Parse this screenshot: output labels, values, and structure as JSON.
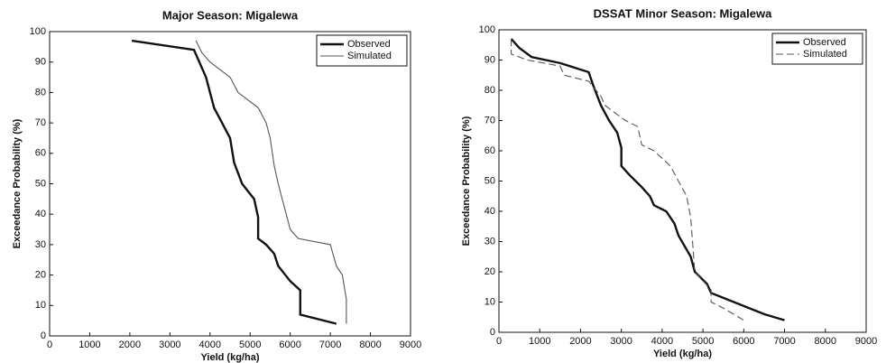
{
  "chart_data": [
    {
      "type": "line",
      "title": "Major Season: Migalewa",
      "x_label": "Yield (kg/ha)",
      "y_label": "Exceedance Probability (%)",
      "xlim": [
        0,
        9000
      ],
      "ylim": [
        0,
        100
      ],
      "xticks": [
        0,
        1000,
        2000,
        3000,
        4000,
        5000,
        6000,
        7000,
        8000,
        9000
      ],
      "yticks": [
        0,
        10,
        20,
        30,
        40,
        50,
        60,
        70,
        80,
        90,
        100
      ],
      "legend": "upper right",
      "series": [
        {
          "name": "Observed",
          "color": "#111111",
          "width": 2.4,
          "style": "solid",
          "x": [
            2050,
            3600,
            3700,
            3900,
            4000,
            4100,
            4300,
            4500,
            4600,
            4800,
            5100,
            5200,
            5200,
            5400,
            5600,
            5700,
            6000,
            6250,
            6250,
            7150
          ],
          "values": [
            97,
            94,
            91,
            85,
            80,
            75,
            70,
            65,
            57,
            50,
            45,
            39,
            32,
            30,
            27,
            23,
            18,
            15,
            7,
            4
          ]
        },
        {
          "name": "Simulated",
          "color": "#555555",
          "width": 1.1,
          "style": "solid",
          "x": [
            3650,
            3800,
            4000,
            4300,
            4500,
            4700,
            5000,
            5200,
            5400,
            5500,
            5600,
            5700,
            5800,
            5900,
            6000,
            6200,
            7000,
            7150,
            7300,
            7400,
            7400
          ],
          "values": [
            97,
            93,
            90,
            87,
            85,
            80,
            77,
            75,
            70,
            65,
            56,
            50,
            45,
            40,
            35,
            32,
            30,
            23,
            20,
            12,
            4
          ]
        }
      ]
    },
    {
      "type": "line",
      "title": "DSSAT Minor Season: Migalewa",
      "x_label": "Yield (kg/ha)",
      "y_label": "Exceedance Probability (%)",
      "xlim": [
        0,
        9000
      ],
      "ylim": [
        0,
        100
      ],
      "xticks": [
        0,
        1000,
        2000,
        3000,
        4000,
        5000,
        6000,
        7000,
        8000,
        9000
      ],
      "yticks": [
        0,
        10,
        20,
        30,
        40,
        50,
        60,
        70,
        80,
        90,
        100
      ],
      "legend": "upper right",
      "series": [
        {
          "name": "Observed",
          "color": "#111111",
          "width": 2.4,
          "style": "solid",
          "x": [
            300,
            500,
            800,
            1500,
            2200,
            2300,
            2500,
            2700,
            2900,
            3000,
            3000,
            3200,
            3500,
            3700,
            3800,
            4100,
            4300,
            4400,
            4700,
            4800,
            5100,
            5200,
            6500,
            7000
          ],
          "values": [
            97,
            94,
            91,
            89,
            86,
            82,
            75,
            70,
            66,
            61,
            55,
            52,
            48,
            45,
            42,
            40,
            36,
            32,
            25,
            20,
            16,
            13,
            6,
            4
          ]
        },
        {
          "name": "Simulated",
          "color": "#555555",
          "width": 1.1,
          "style": "dashed",
          "x": [
            300,
            300,
            700,
            1500,
            1600,
            2200,
            2500,
            2600,
            3100,
            3400,
            3500,
            3800,
            4200,
            4400,
            4600,
            4700,
            4800,
            5000,
            5200,
            5200,
            5500,
            6000
          ],
          "values": [
            97,
            92,
            90,
            88,
            85,
            83,
            78,
            75,
            70,
            68,
            62,
            60,
            55,
            50,
            45,
            38,
            20,
            17,
            14,
            10,
            8,
            4
          ]
        }
      ]
    }
  ]
}
